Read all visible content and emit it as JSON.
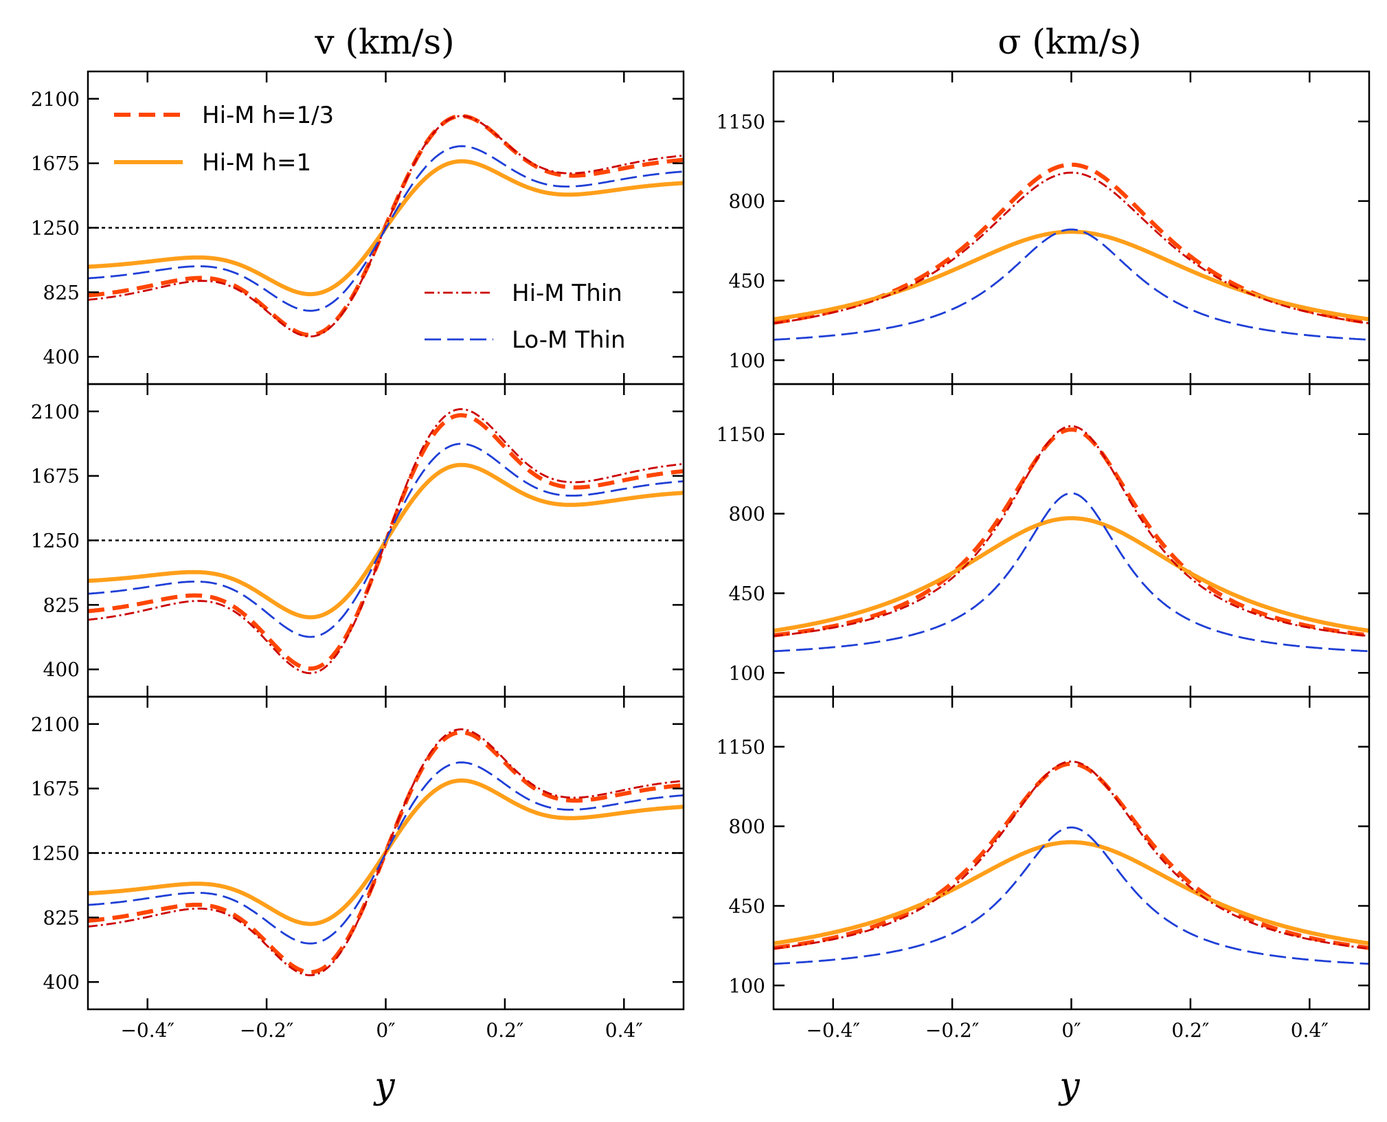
{
  "chart_data": {
    "type": "line",
    "columns": [
      {
        "title": "v (km/s)",
        "ylim": [
          220,
          2280
        ],
        "yticks": [
          400,
          825,
          1250,
          1675,
          2100
        ],
        "reference_line": 1250
      },
      {
        "title": "σ (km/s)",
        "ylim": [
          -5,
          1370
        ],
        "yticks": [
          100,
          450,
          800,
          1150
        ],
        "reference_line": null
      }
    ],
    "xlabel": "y",
    "xlim": [
      -0.5,
      0.5
    ],
    "xticks": [
      -0.4,
      -0.2,
      0.0,
      0.2,
      0.4
    ],
    "xtick_labels": [
      "−0.4″",
      "−0.2″",
      "0″",
      "0.2″",
      "0.4″"
    ],
    "series": [
      {
        "name": "Hi-M h=1/3",
        "color": "#ff4500",
        "style": "dashed-thick"
      },
      {
        "name": "Hi-M h=1",
        "color": "#ff9f1a",
        "style": "solid-thick"
      },
      {
        "name": "Hi-M Thin",
        "color": "#cc0000",
        "style": "dashdot"
      },
      {
        "name": "Lo-M Thin",
        "color": "#1f3fd6",
        "style": "longdash"
      }
    ],
    "rows": [
      {
        "v": {
          "Hi-M h=1/3": {
            "vmin": 540,
            "vmax": 1990,
            "vl": 780,
            "vr": 1720
          },
          "Hi-M h=1": {
            "vmin": 810,
            "vmax": 1690,
            "vl": 980,
            "vr": 1560
          },
          "Hi-M Thin": {
            "vmin": 530,
            "vmax": 1990,
            "vl": 750,
            "vr": 1750
          },
          "Lo-M Thin": {
            "vmin": 700,
            "vmax": 1790,
            "vl": 900,
            "vr": 1640
          }
        },
        "sigma": {
          "Hi-M h=1/3": {
            "peak": 960,
            "edge": 265,
            "width": 0.2
          },
          "Hi-M h=1": {
            "peak": 665,
            "edge": 280,
            "width": 0.28
          },
          "Hi-M Thin": {
            "peak": 925,
            "edge": 262,
            "width": 0.2
          },
          "Lo-M Thin": {
            "peak": 675,
            "edge": 190,
            "width": 0.14
          }
        }
      },
      {
        "v": {
          "Hi-M h=1/3": {
            "vmin": 400,
            "vmax": 2080,
            "vl": 760,
            "vr": 1730
          },
          "Hi-M h=1": {
            "vmin": 740,
            "vmax": 1750,
            "vl": 970,
            "vr": 1580
          },
          "Hi-M Thin": {
            "vmin": 370,
            "vmax": 2120,
            "vl": 700,
            "vr": 1780
          },
          "Lo-M Thin": {
            "vmin": 610,
            "vmax": 1890,
            "vl": 880,
            "vr": 1660
          }
        },
        "sigma": {
          "Hi-M h=1/3": {
            "peak": 1170,
            "edge": 265,
            "width": 0.15
          },
          "Hi-M h=1": {
            "peak": 780,
            "edge": 285,
            "width": 0.25
          },
          "Hi-M Thin": {
            "peak": 1185,
            "edge": 262,
            "width": 0.14
          },
          "Lo-M Thin": {
            "peak": 890,
            "edge": 195,
            "width": 0.11
          }
        }
      },
      {
        "v": {
          "Hi-M h=1/3": {
            "vmin": 460,
            "vmax": 2050,
            "vl": 780,
            "vr": 1720
          },
          "Hi-M h=1": {
            "vmin": 780,
            "vmax": 1730,
            "vl": 970,
            "vr": 1570
          },
          "Hi-M Thin": {
            "vmin": 440,
            "vmax": 2070,
            "vl": 740,
            "vr": 1750
          },
          "Lo-M Thin": {
            "vmin": 650,
            "vmax": 1850,
            "vl": 890,
            "vr": 1650
          }
        },
        "sigma": {
          "Hi-M h=1/3": {
            "peak": 1075,
            "edge": 265,
            "width": 0.17
          },
          "Hi-M h=1": {
            "peak": 730,
            "edge": 285,
            "width": 0.26
          },
          "Hi-M Thin": {
            "peak": 1085,
            "edge": 262,
            "width": 0.16
          },
          "Lo-M Thin": {
            "peak": 795,
            "edge": 195,
            "width": 0.12
          }
        }
      }
    ]
  }
}
